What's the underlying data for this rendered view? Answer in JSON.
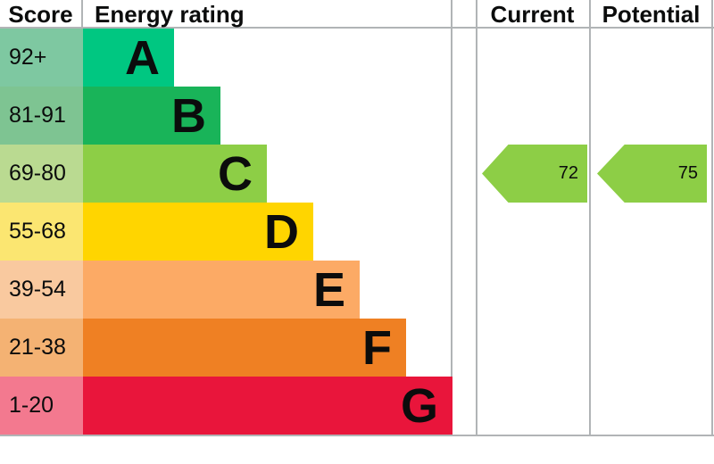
{
  "header": {
    "score": "Score",
    "energy_rating": "Energy rating",
    "current": "Current",
    "potential": "Potential"
  },
  "bands": [
    {
      "range": "92+",
      "letter": "A",
      "color": "#00c781",
      "range_bg": "#7ec8a1"
    },
    {
      "range": "81-91",
      "letter": "B",
      "color": "#19b459",
      "range_bg": "#7ec492"
    },
    {
      "range": "69-80",
      "letter": "C",
      "color": "#8dce46",
      "range_bg": "#bada91"
    },
    {
      "range": "55-68",
      "letter": "D",
      "color": "#ffd500",
      "range_bg": "#fbe671"
    },
    {
      "range": "39-54",
      "letter": "E",
      "color": "#fcaa65",
      "range_bg": "#f9c99f"
    },
    {
      "range": "21-38",
      "letter": "F",
      "color": "#ef8023",
      "range_bg": "#f4b273"
    },
    {
      "range": "1-20",
      "letter": "G",
      "color": "#e9153b",
      "range_bg": "#f3798f"
    }
  ],
  "current": {
    "value": 72,
    "band": "C"
  },
  "potential": {
    "value": 75,
    "band": "C"
  },
  "colors": {
    "border": "#b1b4b6",
    "text": "#0b0c0c",
    "arrow_current": "#8dce46",
    "arrow_potential": "#8dce46"
  },
  "chart_data": {
    "type": "bar",
    "title": "Energy rating",
    "columns": [
      "Score",
      "Energy rating",
      "Current",
      "Potential"
    ],
    "categories": [
      "A",
      "B",
      "C",
      "D",
      "E",
      "F",
      "G"
    ],
    "score_ranges": [
      "92+",
      "81-91",
      "69-80",
      "55-68",
      "39-54",
      "21-38",
      "1-20"
    ],
    "band_colors": [
      "#00c781",
      "#19b459",
      "#8dce46",
      "#ffd500",
      "#fcaa65",
      "#ef8023",
      "#e9153b"
    ],
    "bar_lengths_relative": [
      1,
      2,
      3,
      4,
      5,
      6,
      7
    ],
    "markers": [
      {
        "name": "Current",
        "value": 72,
        "band": "C",
        "color": "#8dce46"
      },
      {
        "name": "Potential",
        "value": 75,
        "band": "C",
        "color": "#8dce46"
      }
    ],
    "legend_position": "none",
    "grid": false
  }
}
